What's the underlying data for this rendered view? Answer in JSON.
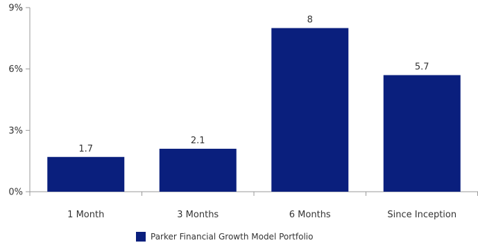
{
  "chart_data": {
    "type": "bar",
    "categories": [
      "1 Month",
      "3 Months",
      "6 Months",
      "Since Inception"
    ],
    "series": [
      {
        "name": "Parker Financial Growth Model Portfolio",
        "values": [
          1.7,
          2.1,
          8,
          5.7
        ],
        "color": "#0a1f7d"
      }
    ],
    "data_labels": [
      "1.7",
      "2.1",
      "8",
      "5.7"
    ],
    "y_ticks": [
      0,
      3,
      6,
      9
    ],
    "y_tick_labels": [
      "0%",
      "3%",
      "6%",
      "9%"
    ],
    "ylim": [
      0,
      9
    ],
    "grid": false,
    "legend_position": "bottom"
  }
}
